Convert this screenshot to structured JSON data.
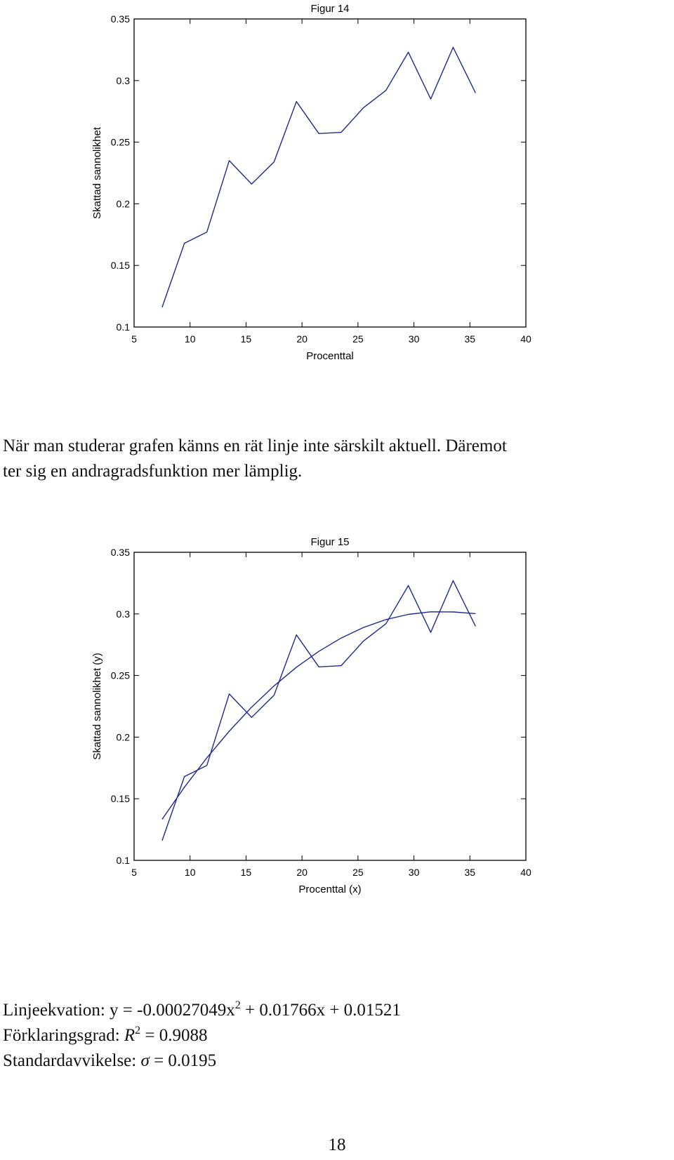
{
  "chart_data": [
    {
      "type": "line",
      "title": "Figur 14",
      "xlabel": "Procenttal",
      "ylabel": "Skattad sannolikhet",
      "xlim": [
        5,
        40
      ],
      "ylim": [
        0.1,
        0.35
      ],
      "xticks": [
        5,
        10,
        15,
        20,
        25,
        30,
        35,
        40
      ],
      "yticks": [
        0.1,
        0.15,
        0.2,
        0.25,
        0.3,
        0.35
      ],
      "ytick_labels": [
        "0.1",
        "0.15",
        "0.2",
        "0.25",
        "0.3",
        "0.35"
      ],
      "grid": false,
      "color": "#1f2a8c",
      "series": [
        {
          "x": [
            7.5,
            9.5,
            11.5,
            13.5,
            15.5,
            17.5,
            19.5,
            21.5,
            23.5,
            25.5,
            27.5,
            29.5,
            31.5,
            33.5,
            35.5
          ],
          "y": [
            0.116,
            0.168,
            0.177,
            0.235,
            0.216,
            0.234,
            0.283,
            0.257,
            0.258,
            0.278,
            0.292,
            0.323,
            0.285,
            0.327,
            0.29
          ]
        }
      ]
    },
    {
      "type": "line",
      "title": "Figur 15",
      "xlabel": "Procenttal (x)",
      "ylabel": "Skattad sannolikhet (y)",
      "xlim": [
        5,
        40
      ],
      "ylim": [
        0.1,
        0.35
      ],
      "xticks": [
        5,
        10,
        15,
        20,
        25,
        30,
        35,
        40
      ],
      "yticks": [
        0.1,
        0.15,
        0.2,
        0.25,
        0.3,
        0.35
      ],
      "ytick_labels": [
        "0.1",
        "0.15",
        "0.2",
        "0.25",
        "0.3",
        "0.35"
      ],
      "grid": false,
      "color": "#1f2a8c",
      "series": [
        {
          "x": [
            7.5,
            9.5,
            11.5,
            13.5,
            15.5,
            17.5,
            19.5,
            21.5,
            23.5,
            25.5,
            27.5,
            29.5,
            31.5,
            33.5,
            35.5
          ],
          "y": [
            0.116,
            0.168,
            0.177,
            0.235,
            0.216,
            0.234,
            0.283,
            0.257,
            0.258,
            0.278,
            0.292,
            0.323,
            0.285,
            0.327,
            0.29
          ]
        },
        {
          "x": [
            7.5,
            9.5,
            11.5,
            13.5,
            15.5,
            17.5,
            19.5,
            21.5,
            23.5,
            25.5,
            27.5,
            29.5,
            31.5,
            33.5,
            35.5
          ],
          "y": [
            0.1333,
            0.1594,
            0.1832,
            0.2048,
            0.2243,
            0.2416,
            0.2567,
            0.2696,
            0.2804,
            0.289,
            0.2954,
            0.2996,
            0.3017,
            0.3016,
            0.3002
          ]
        }
      ]
    }
  ],
  "paragraph": {
    "line1": "När man studerar grafen känns en rät linje inte särskilt aktuell. Däremot",
    "line2": "ter sig en andragradsfunktion mer lämplig."
  },
  "stats": {
    "equation_prefix": "Linjeekvation: y = -0.00027049x",
    "equation_exp": "2",
    "equation_suffix": " + 0.01766x + 0.01521",
    "r2_label": "Förklaringsgrad: ",
    "r2_symbol": "R",
    "r2_exp": "2",
    "r2_value": " = 0.9088",
    "sigma_label": "Standardavvikelse: ",
    "sigma_symbol": "σ",
    "sigma_value": " = 0.0195"
  },
  "page_number": "18"
}
